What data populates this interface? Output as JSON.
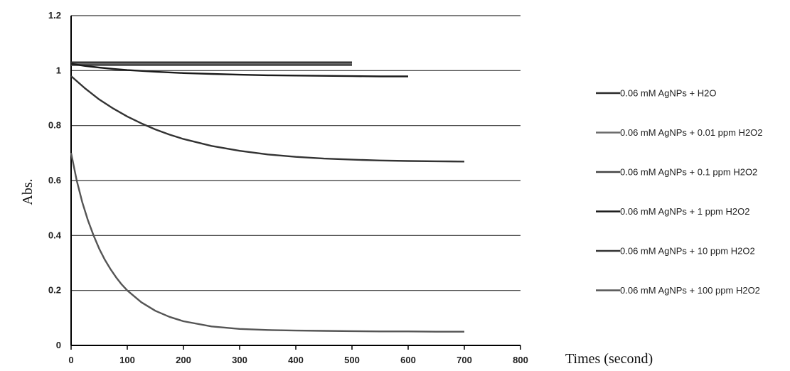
{
  "chart_data": {
    "type": "line",
    "title": "",
    "xlabel": "Times (second)",
    "ylabel": "Abs.",
    "xlim": [
      0,
      800
    ],
    "ylim": [
      0,
      1.2
    ],
    "x_ticks": [
      "0",
      "100",
      "200",
      "300",
      "400",
      "500",
      "600",
      "700",
      "800"
    ],
    "y_ticks": [
      "0",
      "0.2",
      "0.4",
      "0.6",
      "0.8",
      "1",
      "1.2"
    ],
    "grid": "horizontal",
    "legend_position": "right",
    "series": [
      {
        "name": "0.06 mM AgNPs + H2O",
        "color": "#2a2a2a",
        "points": [
          [
            0,
            1.03
          ],
          [
            100,
            1.03
          ],
          [
            200,
            1.03
          ],
          [
            300,
            1.03
          ],
          [
            400,
            1.03
          ],
          [
            500,
            1.03
          ]
        ]
      },
      {
        "name": "0.06 mM AgNPs + 0.01 ppm H2O2",
        "color": "#6a6a6a",
        "points": [
          [
            0,
            1.025
          ],
          [
            100,
            1.025
          ],
          [
            200,
            1.025
          ],
          [
            300,
            1.025
          ],
          [
            400,
            1.025
          ],
          [
            500,
            1.025
          ]
        ]
      },
      {
        "name": "0.06 mM AgNPs + 0.1 ppm H2O2",
        "color": "#444444",
        "points": [
          [
            0,
            1.02
          ],
          [
            100,
            1.02
          ],
          [
            200,
            1.02
          ],
          [
            300,
            1.02
          ],
          [
            400,
            1.02
          ],
          [
            500,
            1.02
          ]
        ]
      },
      {
        "name": "0.06 mM AgNPs + 1 ppm H2O2",
        "color": "#1a1a1a",
        "points": [
          [
            0,
            1.025
          ],
          [
            25,
            1.017
          ],
          [
            50,
            1.011
          ],
          [
            75,
            1.006
          ],
          [
            100,
            1.002
          ],
          [
            150,
            0.996
          ],
          [
            200,
            0.991
          ],
          [
            250,
            0.988
          ],
          [
            300,
            0.985
          ],
          [
            350,
            0.983
          ],
          [
            400,
            0.982
          ],
          [
            450,
            0.981
          ],
          [
            500,
            0.98
          ],
          [
            550,
            0.979
          ],
          [
            600,
            0.979
          ]
        ]
      },
      {
        "name": "0.06 mM AgNPs + 10 ppm H2O2",
        "color": "#333333",
        "points": [
          [
            0,
            0.98
          ],
          [
            25,
            0.935
          ],
          [
            50,
            0.895
          ],
          [
            75,
            0.862
          ],
          [
            100,
            0.833
          ],
          [
            125,
            0.808
          ],
          [
            150,
            0.786
          ],
          [
            175,
            0.767
          ],
          [
            200,
            0.751
          ],
          [
            250,
            0.726
          ],
          [
            300,
            0.708
          ],
          [
            350,
            0.695
          ],
          [
            400,
            0.686
          ],
          [
            450,
            0.68
          ],
          [
            500,
            0.676
          ],
          [
            550,
            0.673
          ],
          [
            600,
            0.671
          ],
          [
            650,
            0.67
          ],
          [
            700,
            0.669
          ]
        ]
      },
      {
        "name": "0.06 mM AgNPs + 100 ppm H2O2",
        "color": "#555555",
        "points": [
          [
            0,
            0.7
          ],
          [
            10,
            0.6
          ],
          [
            20,
            0.52
          ],
          [
            30,
            0.455
          ],
          [
            40,
            0.4
          ],
          [
            50,
            0.352
          ],
          [
            60,
            0.312
          ],
          [
            70,
            0.278
          ],
          [
            80,
            0.248
          ],
          [
            90,
            0.222
          ],
          [
            100,
            0.2
          ],
          [
            125,
            0.157
          ],
          [
            150,
            0.126
          ],
          [
            175,
            0.104
          ],
          [
            200,
            0.088
          ],
          [
            250,
            0.069
          ],
          [
            300,
            0.06
          ],
          [
            350,
            0.056
          ],
          [
            400,
            0.054
          ],
          [
            450,
            0.053
          ],
          [
            500,
            0.052
          ],
          [
            550,
            0.051
          ],
          [
            600,
            0.051
          ],
          [
            650,
            0.05
          ],
          [
            700,
            0.05
          ]
        ]
      }
    ]
  }
}
